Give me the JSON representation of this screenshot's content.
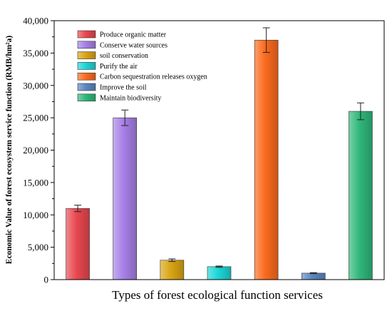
{
  "chart_data": {
    "type": "bar",
    "title": "",
    "xlabel": "Types of forest ecological function services",
    "ylabel": "Economic Value of forest ecosystem service function (RMB/hm²a)",
    "ylim": [
      0,
      40000
    ],
    "yticks": [
      0,
      5000,
      10000,
      15000,
      20000,
      25000,
      30000,
      35000,
      40000
    ],
    "ytick_labels": [
      "0",
      "5,000",
      "10,000",
      "15,000",
      "20,000",
      "25,000",
      "30,000",
      "35,000",
      "40,000"
    ],
    "legend_position": "top-left",
    "grid": false,
    "categories": [
      "Produce organic matter",
      "Conserve water sources",
      "soil conservation",
      "Purify the air",
      "Carbon sequestration releases oxygen",
      "Improve the soil",
      "Maintain biodiversity"
    ],
    "values": [
      11000,
      25000,
      3000,
      2000,
      37000,
      1000,
      26000
    ],
    "errors": [
      500,
      1200,
      200,
      100,
      1900,
      80,
      1300
    ],
    "colors": [
      "#e8474f",
      "#a67fe6",
      "#d9a413",
      "#1cd6d6",
      "#fb6a1e",
      "#5b86c0",
      "#2fb77a"
    ]
  }
}
